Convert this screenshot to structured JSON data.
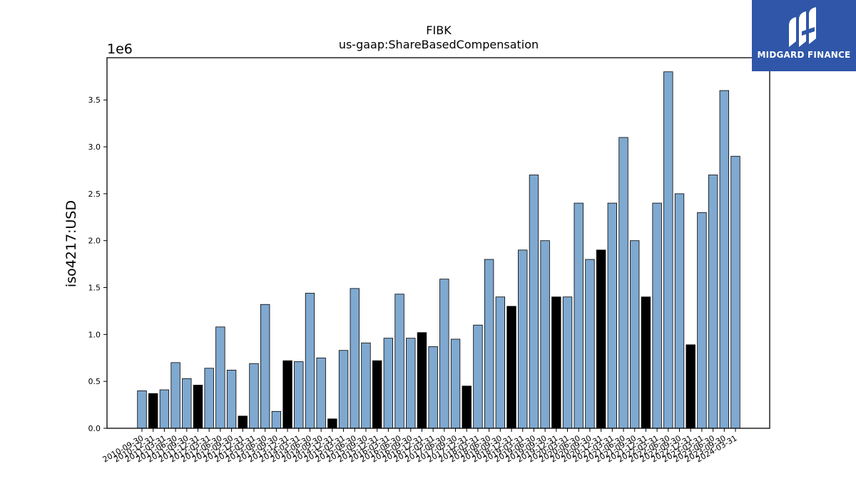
{
  "brand": {
    "name": "MIDGARD FINANCE",
    "logo_icon": "midgard-mark-icon",
    "color": "#2f56a8"
  },
  "chart_data": {
    "type": "bar",
    "title": "FIBK",
    "subtitle": "us-gaap:ShareBasedCompensation",
    "ylabel": "iso4217:USD",
    "xlabel": "",
    "y_multiplier_label": "1e6",
    "ylim": [
      0,
      3.95
    ],
    "yticks": [
      0.0,
      0.5,
      1.0,
      1.5,
      2.0,
      2.5,
      3.0,
      3.5
    ],
    "ytick_labels": [
      "0.0",
      "0.5",
      "1.0",
      "1.5",
      "2.0",
      "2.5",
      "3.0",
      "3.5"
    ],
    "grid": false,
    "colors": {
      "default": "#7fa9d0",
      "highlight": "#000000",
      "edge": "#000000"
    },
    "categories": [
      "2010-09-30",
      "2010-12-31",
      "2011-03-31",
      "2011-06-30",
      "2011-09-30",
      "2011-12-31",
      "2012-03-31",
      "2012-06-30",
      "2012-09-30",
      "2012-12-31",
      "2013-03-31",
      "2013-06-30",
      "2013-09-30",
      "2013-12-31",
      "2014-03-31",
      "2014-06-30",
      "2014-09-30",
      "2014-12-31",
      "2015-03-31",
      "2015-06-30",
      "2015-09-30",
      "2015-12-31",
      "2016-03-31",
      "2016-06-30",
      "2016-09-30",
      "2016-12-31",
      "2017-03-31",
      "2017-06-30",
      "2017-09-30",
      "2017-12-31",
      "2018-03-31",
      "2018-06-30",
      "2018-09-30",
      "2018-12-31",
      "2019-03-31",
      "2019-06-30",
      "2019-09-30",
      "2019-12-31",
      "2020-03-31",
      "2020-06-30",
      "2020-09-30",
      "2020-12-31",
      "2021-03-31",
      "2021-06-30",
      "2021-09-30",
      "2021-12-31",
      "2022-03-31",
      "2022-06-30",
      "2022-09-30",
      "2022-12-31",
      "2023-03-31",
      "2023-06-30",
      "2023-09-30",
      "2024-03-31"
    ],
    "values": [
      0.4,
      0.37,
      0.41,
      0.7,
      0.53,
      0.46,
      0.64,
      1.08,
      0.62,
      0.13,
      0.69,
      1.32,
      0.18,
      0.72,
      0.71,
      1.44,
      0.75,
      0.1,
      0.83,
      1.49,
      0.91,
      0.72,
      0.96,
      1.43,
      0.96,
      1.02,
      0.87,
      1.59,
      0.95,
      0.45,
      1.1,
      1.8,
      1.4,
      1.3,
      1.9,
      2.7,
      2.0,
      1.4,
      1.4,
      2.4,
      1.8,
      1.9,
      2.4,
      3.1,
      2.0,
      1.4,
      2.4,
      3.8,
      2.5,
      0.89,
      2.3,
      2.7,
      3.6,
      2.9
    ],
    "highlight": [
      false,
      true,
      false,
      false,
      false,
      true,
      false,
      false,
      false,
      true,
      false,
      false,
      false,
      true,
      false,
      false,
      false,
      true,
      false,
      false,
      false,
      true,
      false,
      false,
      false,
      true,
      false,
      false,
      false,
      true,
      false,
      false,
      false,
      true,
      false,
      false,
      false,
      true,
      false,
      false,
      false,
      true,
      false,
      false,
      false,
      true,
      false,
      false,
      false,
      true,
      false,
      false,
      false,
      false
    ]
  }
}
